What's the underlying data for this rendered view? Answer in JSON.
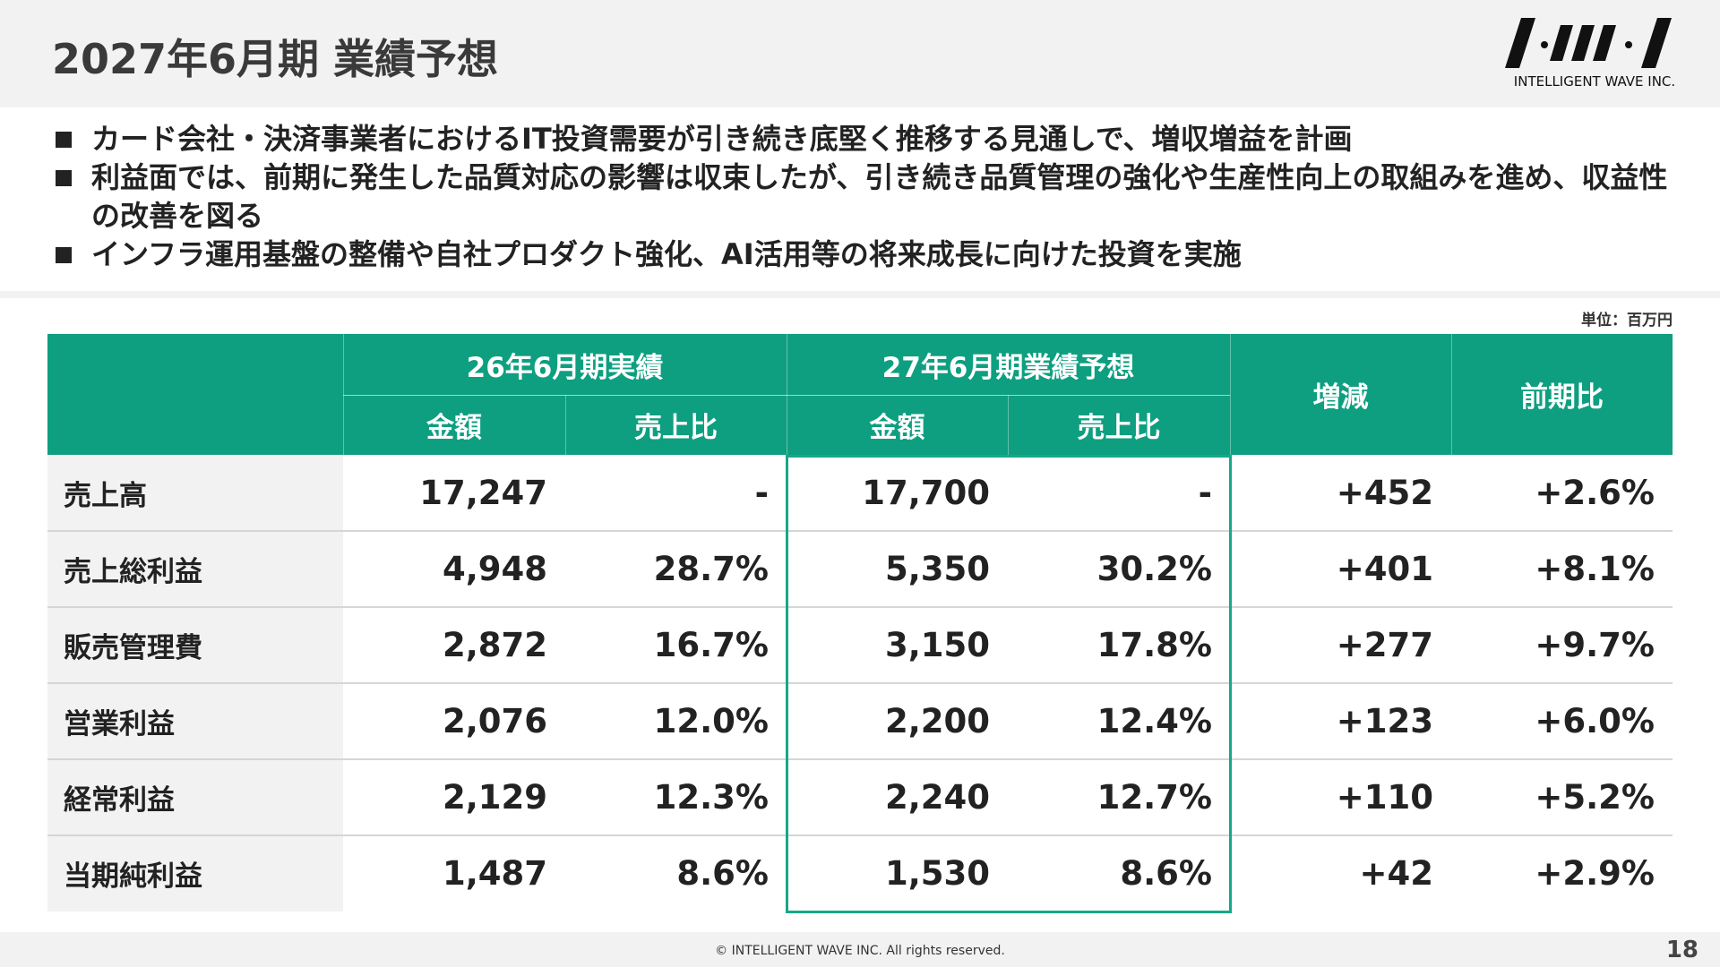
{
  "header": {
    "title": "2027年6月期 業績予想",
    "logo": "INTELLIGENT WAVE INC."
  },
  "bullets": [
    "カード会社・決済事業者におけるIT投資需要が引き続き底堅く推移する見通しで、増収増益を計画",
    "利益面では、前期に発生した品質対応の影響は収束したが、引き続き品質管理の強化や生産性向上の取組みを進め、収益性の改善を図る",
    "インフラ運用基盤の整備や自社プロダクト強化、AI活用等の将来成長に向けた投資を実施"
  ],
  "unit": "単位：百万円",
  "table": {
    "header_groups": [
      "26年6月期実績",
      "27年6月期業績予想",
      "増減",
      "前期比"
    ],
    "sub_headers": [
      "金額",
      "売上比",
      "金額",
      "売上比"
    ],
    "rows": [
      [
        "売上高",
        "17,247",
        "-",
        "17,700",
        "-",
        "+452",
        "+2.6%"
      ],
      [
        "売上総利益",
        "4,948",
        "28.7%",
        "5,350",
        "30.2%",
        "+401",
        "+8.1%"
      ],
      [
        "販売管理費",
        "2,872",
        "16.7%",
        "3,150",
        "17.8%",
        "+277",
        "+9.7%"
      ],
      [
        "営業利益",
        "2,076",
        "12.0%",
        "2,200",
        "12.4%",
        "+123",
        "+6.0%"
      ],
      [
        "経常利益",
        "2,129",
        "12.3%",
        "2,240",
        "12.7%",
        "+110",
        "+5.2%"
      ],
      [
        "当期純利益",
        "1,487",
        "8.6%",
        "1,530",
        "8.6%",
        "+42",
        "+2.9%"
      ]
    ]
  },
  "footer": {
    "copyright": "© INTELLIGENT WAVE INC. All rights reserved.",
    "page": "18"
  }
}
